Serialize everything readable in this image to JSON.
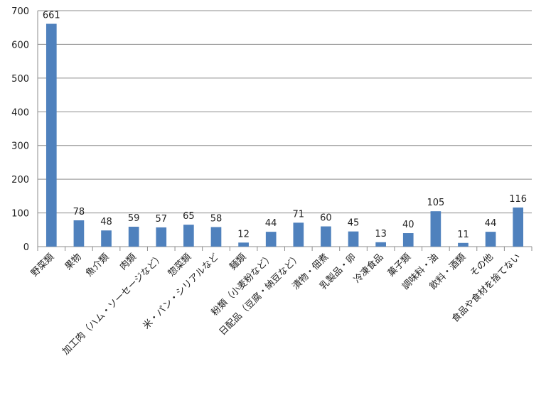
{
  "chart_data": {
    "type": "bar",
    "categories": [
      "野菜類",
      "果物",
      "魚介類",
      "肉類",
      "加工肉（ハム・ソーセージなど）",
      "惣菜類",
      "米・パン・シリアルなど",
      "麺類",
      "粉類（小麦粉など）",
      "日配品（豆腐・納豆など）",
      "漬物・佃煮",
      "乳製品・卵",
      "冷凍食品",
      "菓子類",
      "調味料・油",
      "飲料・酒類",
      "その他",
      "食品や食材を捨てない"
    ],
    "values": [
      661,
      78,
      48,
      59,
      57,
      65,
      58,
      12,
      44,
      71,
      60,
      45,
      13,
      40,
      105,
      11,
      44,
      116
    ],
    "data_labels": [
      "661",
      "78",
      "48",
      "59",
      "57",
      "65",
      "58",
      "12",
      "44",
      "71",
      "60",
      "45",
      "13",
      "40",
      "105",
      "11",
      "44",
      "116"
    ],
    "yticks": [
      "0",
      "100",
      "200",
      "300",
      "400",
      "500",
      "600",
      "700"
    ],
    "ylim": [
      0,
      700
    ],
    "grid": true,
    "bar_color": "#4f81bd",
    "grid_color": "#8c8c8c"
  }
}
